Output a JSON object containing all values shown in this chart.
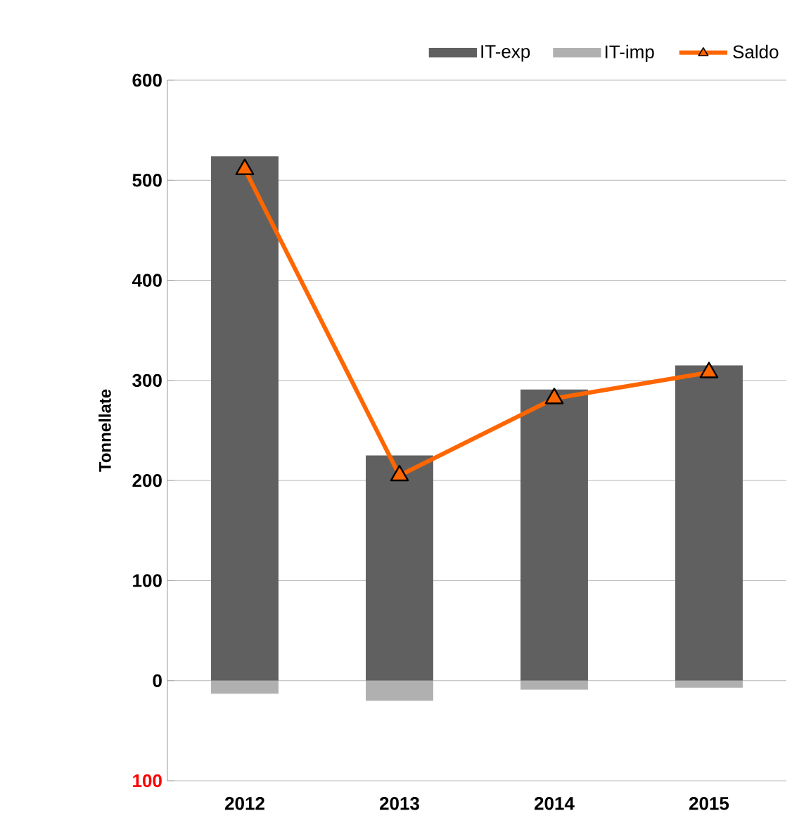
{
  "chart_data": {
    "type": "bar",
    "ylabel": "Tonnellate",
    "categories": [
      "2012",
      "2013",
      "2014",
      "2015"
    ],
    "series": [
      {
        "name": "IT-exp",
        "color": "#606060",
        "values": [
          524,
          225,
          291,
          315
        ]
      },
      {
        "name": "IT-imp",
        "color": "#b0b0b0",
        "values": [
          -13,
          -20,
          -9,
          -7
        ]
      },
      {
        "name": "Saldo",
        "type": "line",
        "color": "#ff6600",
        "marker": "triangle",
        "values": [
          511,
          205,
          282,
          308
        ]
      }
    ],
    "ylim": [
      -100,
      600
    ],
    "yticks": [
      {
        "value": -100,
        "label": "100"
      },
      0,
      100,
      200,
      300,
      400,
      500,
      600
    ],
    "stacked": true,
    "grid": "y",
    "legend": "top right"
  }
}
